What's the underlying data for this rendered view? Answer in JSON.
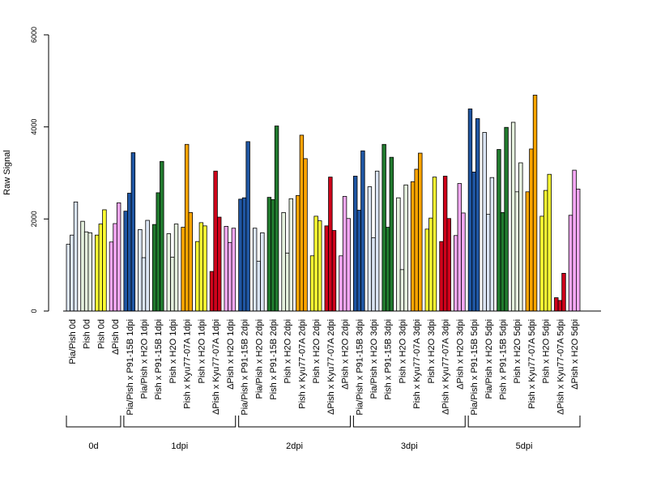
{
  "chart_data": {
    "type": "bar",
    "ylabel": "Raw Signal",
    "ylim": [
      0,
      6000
    ],
    "yticks": [
      0,
      2000,
      4000,
      6000
    ],
    "grid": false,
    "legend": "none",
    "colors": {
      "light_blue": "#dce6f5",
      "dark_blue": "#1f56a3",
      "light_green": "#e6f2df",
      "dark_green": "#217a2e",
      "yellow": "#ffff33",
      "orange": "#ffa500",
      "red": "#d0021b",
      "pink": "#f5a8f5"
    },
    "categories": [
      {
        "label": "Pia/Pish 0d",
        "color": "light_blue",
        "values": [
          1450,
          1650,
          2370
        ]
      },
      {
        "label": "Pish 0d",
        "color": "light_green",
        "values": [
          1950,
          1720,
          1700
        ]
      },
      {
        "label": "Pish 0d",
        "color": "yellow",
        "values": [
          1650,
          1890,
          2200
        ]
      },
      {
        "label": "ΔPish 0d",
        "color": "pink",
        "values": [
          1500,
          1900,
          2350
        ]
      },
      {
        "label": "Pia/Pish x P91-15B 1dpi",
        "color": "dark_blue",
        "values": [
          2170,
          2560,
          3440
        ]
      },
      {
        "label": "Pia/Pish x H2O 1dpi",
        "color": "light_blue",
        "values": [
          1770,
          1160,
          1970
        ]
      },
      {
        "label": "Pish x P91-15B 1dpi",
        "color": "dark_green",
        "values": [
          1880,
          2570,
          3250
        ]
      },
      {
        "label": "Pish x H2O 1dpi",
        "color": "light_green",
        "values": [
          1680,
          1170,
          1890
        ]
      },
      {
        "label": "Pish x Kyu77-07A 1dpi",
        "color": "orange",
        "values": [
          1820,
          3620,
          2140
        ]
      },
      {
        "label": "Pish x H2O 1dpi",
        "color": "yellow",
        "values": [
          1510,
          1920,
          1850
        ]
      },
      {
        "label": "ΔPish x Kyu77-07A 1dpi",
        "color": "red",
        "values": [
          860,
          3040,
          2040
        ]
      },
      {
        "label": "ΔPish x H2O 1dpi",
        "color": "pink",
        "values": [
          1840,
          1490,
          1800
        ]
      },
      {
        "label": "Pia/Pish x P91-15B 2dpi",
        "color": "dark_blue",
        "values": [
          2430,
          2460,
          3680
        ]
      },
      {
        "label": "Pia/Pish x H2O 2dpi",
        "color": "light_blue",
        "values": [
          1800,
          1080,
          1700
        ]
      },
      {
        "label": "Pish x P91-15B 2dpi",
        "color": "dark_green",
        "values": [
          2470,
          2420,
          4020
        ]
      },
      {
        "label": "Pish x H2O 2dpi",
        "color": "light_green",
        "values": [
          2140,
          1260,
          2440
        ]
      },
      {
        "label": "Pish x Kyu77-07A 2dpi",
        "color": "orange",
        "values": [
          2510,
          3820,
          3310
        ]
      },
      {
        "label": "Pish x H2O 2dpi",
        "color": "yellow",
        "values": [
          1200,
          2060,
          1960
        ]
      },
      {
        "label": "ΔPish x Kyu77-07A 2dpi",
        "color": "red",
        "values": [
          1850,
          2910,
          1750
        ]
      },
      {
        "label": "ΔPish x H2O 2dpi",
        "color": "pink",
        "values": [
          1200,
          2490,
          2010
        ]
      },
      {
        "label": "Pia/Pish x P91-15B 3dpi",
        "color": "dark_blue",
        "values": [
          2930,
          2190,
          3480
        ]
      },
      {
        "label": "Pia/Pish x H2O 3dpi",
        "color": "light_blue",
        "values": [
          2700,
          1590,
          3040
        ]
      },
      {
        "label": "Pish x P91-15B 3dpi",
        "color": "dark_green",
        "values": [
          3620,
          1820,
          3340
        ]
      },
      {
        "label": "Pish x H2O 3dpi",
        "color": "light_green",
        "values": [
          2460,
          900,
          2740
        ]
      },
      {
        "label": "Pish x Kyu77-07A 3dpi",
        "color": "orange",
        "values": [
          2810,
          3080,
          3430
        ]
      },
      {
        "label": "Pish x H2O 3dpi",
        "color": "yellow",
        "values": [
          1780,
          2020,
          2910
        ]
      },
      {
        "label": "ΔPish x Kyu77-07A 3dpi",
        "color": "red",
        "values": [
          1510,
          2930,
          2010
        ]
      },
      {
        "label": "ΔPish x H2O 3dpi",
        "color": "pink",
        "values": [
          1640,
          2770,
          2130
        ]
      },
      {
        "label": "Pia/Pish x P91-15B 5dpi",
        "color": "dark_blue",
        "values": [
          4390,
          3020,
          4180
        ]
      },
      {
        "label": "Pia/Pish x H2O 5dpi",
        "color": "light_blue",
        "values": [
          3880,
          2100,
          2900
        ]
      },
      {
        "label": "Pish x P91-15B 5dpi",
        "color": "dark_green",
        "values": [
          3510,
          2140,
          3990
        ]
      },
      {
        "label": "Pish x H2O 5dpi",
        "color": "light_green",
        "values": [
          4100,
          2590,
          3220
        ]
      },
      {
        "label": "Pish x Kyu77-07A 5dpi",
        "color": "orange",
        "values": [
          2590,
          3520,
          4690
        ]
      },
      {
        "label": "Pish x H2O 5dpi",
        "color": "yellow",
        "values": [
          2060,
          2620,
          2970
        ]
      },
      {
        "label": "ΔPish x Kyu77-07A 5dpi",
        "color": "red",
        "values": [
          290,
          230,
          820
        ]
      },
      {
        "label": "ΔPish x H2O 5dpi",
        "color": "pink",
        "values": [
          2080,
          3060,
          2650
        ]
      }
    ],
    "groups": [
      {
        "label": "0d",
        "count": 4
      },
      {
        "label": "1dpi",
        "count": 8
      },
      {
        "label": "2dpi",
        "count": 8
      },
      {
        "label": "3dpi",
        "count": 8
      },
      {
        "label": "5dpi",
        "count": 8
      }
    ]
  }
}
